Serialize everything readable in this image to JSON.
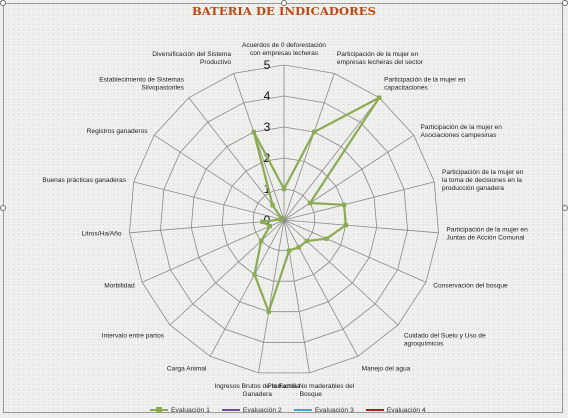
{
  "chart_data": {
    "type": "radar",
    "title": "BATERIA DE INDICADORES",
    "axes": [
      "Acuerdos de 0 deforestación con empresas lecheras",
      "Participación de la mujer en empresas lecheras del sector",
      "Participación de la mujer en capacitaciones",
      "Participación de la mujer en Asociaciones campesinas",
      "Participación de la mujer en la toma de decisiones en la producción ganadera",
      "Participación de la mujer en Juntas de Acción Comunal",
      "Conservación del bosque",
      "Cuidado del Suelo y Uso de agroquímicos",
      "Manejo del agua",
      "Productos No maderables del Bosque",
      "Ingresos Brutos de la Familia Ganadera",
      "Carga Animal",
      "Intervalo entre partos",
      "Morbilidad",
      "Litros/Ha/Año",
      "Buenas prácticas ganaderas",
      "Registros ganaderos",
      "Establecimiento de Sistemas Silvopastoriles",
      "Diversificación del Sistema Productivo"
    ],
    "rmin": 0,
    "rmax": 5,
    "ticks": [
      0,
      1,
      2,
      3,
      4,
      5
    ],
    "grid": true,
    "legend_position": "bottom",
    "series": [
      {
        "name": "Evaluación 1",
        "color": "#8aab52",
        "values": [
          1,
          3,
          5,
          1,
          2,
          2,
          1.5,
          1,
          1,
          1,
          3,
          2,
          1,
          0.5,
          0.7,
          0.1,
          0.1,
          0.6,
          3
        ]
      },
      {
        "name": "Evaluación 2",
        "color": "#6b4f9c",
        "values": []
      },
      {
        "name": "Evaluación 3",
        "color": "#3fa6cf",
        "values": []
      },
      {
        "name": "Evaluación 4",
        "color": "#b01e1e",
        "values": []
      }
    ]
  }
}
